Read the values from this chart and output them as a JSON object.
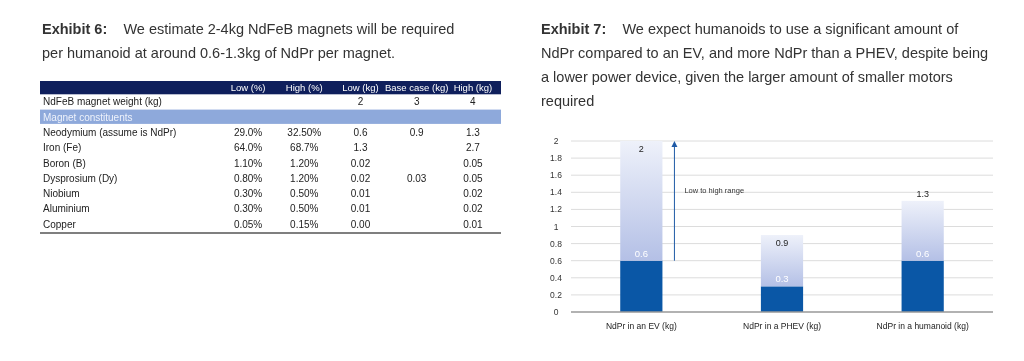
{
  "chart_data": [
    {
      "type": "heatmap",
      "title": "Exhibit 6:    We estimate 2-4kg NdFeB magnets will be required per humanoid at around 0.6-1.3kg of NdPr per magnet.",
      "categories": [
        "Low (%)",
        "High (%)",
        "Low (kg)",
        "Base case (kg)",
        "High (kg)"
      ],
      "y_categories": [
        "NdFeB magnet weight (kg)",
        "Magnet constituents",
        "Neodymium (assume is NdPr)",
        "Iron (Fe)",
        "Boron (B)",
        "Dysprosium (Dy)",
        "Niobium",
        "Aluminium",
        "Copper"
      ],
      "cells": [
        [
          null,
          null,
          2,
          3,
          4
        ],
        [
          null,
          null,
          null,
          null,
          null
        ],
        [
          29.0,
          32.5,
          0.6,
          0.9,
          1.3
        ],
        [
          64.0,
          68.7,
          1.3,
          null,
          2.7
        ],
        [
          1.1,
          1.2,
          0.02,
          null,
          0.05
        ],
        [
          0.8,
          1.2,
          0.02,
          0.03,
          0.05
        ],
        [
          0.3,
          0.5,
          0.01,
          null,
          0.02
        ],
        [
          0.3,
          0.5,
          0.01,
          null,
          0.02
        ],
        [
          0.05,
          0.15,
          0,
          null,
          0.01
        ]
      ],
      "cell_labels": [
        [
          null,
          null,
          "2",
          "3",
          "4"
        ],
        [
          null,
          null,
          null,
          null,
          null
        ],
        [
          "29.0%",
          "32.50%",
          "0.6",
          "0.9",
          "1.3"
        ],
        [
          "64.0%",
          "68.7%",
          "1.3",
          null,
          "2.7"
        ],
        [
          "1.10%",
          "1.20%",
          "0.02",
          null,
          "0.05"
        ],
        [
          "0.80%",
          "1.20%",
          "0.02",
          "0.03",
          "0.05"
        ],
        [
          "0.30%",
          "0.50%",
          "0.01",
          null,
          "0.02"
        ],
        [
          "0.30%",
          "0.50%",
          "0.01",
          null,
          "0.02"
        ],
        [
          "0.05%",
          "0.15%",
          "0.00",
          null,
          "0.01"
        ]
      ]
    },
    {
      "type": "bar",
      "title": "Exhibit 7:    We expect humanoids to use a significant amount of NdPr compared to an EV, and more NdPr than a PHEV, despite being a lower power device, given the larger amount of smaller motors required",
      "categories": [
        "NdPr in an EV (kg)",
        "NdPr in a PHEV (kg)",
        "NdPr in a humanoid (kg)"
      ],
      "stacked": true,
      "series": [
        {
          "color": "#0a57a6",
          "values": [
            0.6,
            0.3,
            0.6
          ],
          "value_labels": [
            "0.6",
            "0.3",
            "0.6"
          ]
        },
        {
          "color": "#b4c0e6",
          "values": [
            1.4,
            0.6,
            0.7
          ]
        }
      ],
      "totals": [
        "2",
        "0.9",
        "1.3"
      ],
      "ylim": [
        0,
        2
      ],
      "yticks": [
        0,
        0.2,
        0.4,
        0.6,
        0.8,
        1,
        1.2,
        1.4,
        1.6,
        1.8,
        2
      ],
      "grid": "y",
      "annotations": [
        "Low to high range"
      ]
    }
  ]
}
